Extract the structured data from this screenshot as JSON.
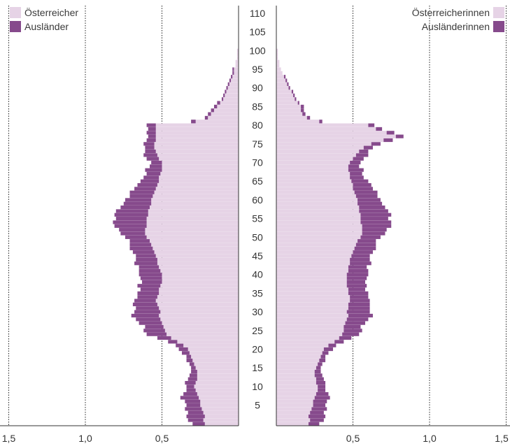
{
  "chart_data": {
    "type": "bar",
    "orientation": "horizontal",
    "subtype": "population-pyramid",
    "stacked": true,
    "colors": {
      "citizen": "#e6d3e6",
      "foreigner": "#864a8c"
    },
    "age_ticks": [
      5,
      10,
      15,
      20,
      25,
      30,
      35,
      40,
      45,
      50,
      55,
      60,
      65,
      70,
      75,
      80,
      85,
      90,
      95,
      100,
      105,
      110
    ],
    "x_ticks_left": [
      "1,5",
      "1,0",
      "0,5"
    ],
    "x_ticks_right": [
      "0,5",
      "1,0",
      "1,5"
    ],
    "x_tick_values": [
      1.5,
      1.0,
      0.5
    ],
    "xlim": [
      0,
      1.5
    ],
    "ylim": [
      0,
      112
    ],
    "legend": {
      "left": [
        {
          "label": "Österreicher",
          "key": "citizen"
        },
        {
          "label": "Ausländer",
          "key": "foreigner"
        }
      ],
      "right": [
        {
          "label": "Österreicherinnen",
          "key": "citizen"
        },
        {
          "label": "Ausländerinnen",
          "key": "foreigner"
        }
      ]
    },
    "ages": [
      0,
      1,
      2,
      3,
      4,
      5,
      6,
      7,
      8,
      9,
      10,
      11,
      12,
      13,
      14,
      15,
      16,
      17,
      18,
      19,
      20,
      21,
      22,
      23,
      24,
      25,
      26,
      27,
      28,
      29,
      30,
      31,
      32,
      33,
      34,
      35,
      36,
      37,
      38,
      39,
      40,
      41,
      42,
      43,
      44,
      45,
      46,
      47,
      48,
      49,
      50,
      51,
      52,
      53,
      54,
      55,
      56,
      57,
      58,
      59,
      60,
      61,
      62,
      63,
      64,
      65,
      66,
      67,
      68,
      69,
      70,
      71,
      72,
      73,
      74,
      75,
      76,
      77,
      78,
      79,
      80,
      81,
      82,
      83,
      84,
      85,
      86,
      87,
      88,
      89,
      90,
      91,
      92,
      93,
      94,
      95,
      96,
      97,
      98,
      99,
      100
    ],
    "series": [
      {
        "name": "Österreicher",
        "sex": "male",
        "group": "citizen",
        "values": [
          0.22,
          0.23,
          0.22,
          0.23,
          0.24,
          0.25,
          0.25,
          0.26,
          0.27,
          0.28,
          0.29,
          0.28,
          0.27,
          0.27,
          0.27,
          0.28,
          0.29,
          0.3,
          0.31,
          0.32,
          0.33,
          0.36,
          0.4,
          0.44,
          0.47,
          0.48,
          0.49,
          0.5,
          0.51,
          0.52,
          0.51,
          0.52,
          0.53,
          0.54,
          0.53,
          0.52,
          0.52,
          0.51,
          0.5,
          0.5,
          0.5,
          0.51,
          0.52,
          0.53,
          0.53,
          0.54,
          0.55,
          0.56,
          0.57,
          0.58,
          0.6,
          0.61,
          0.61,
          0.6,
          0.6,
          0.6,
          0.59,
          0.59,
          0.58,
          0.57,
          0.57,
          0.56,
          0.55,
          0.54,
          0.53,
          0.52,
          0.52,
          0.51,
          0.5,
          0.5,
          0.5,
          0.52,
          0.53,
          0.54,
          0.55,
          0.55,
          0.54,
          0.54,
          0.54,
          0.54,
          0.54,
          0.28,
          0.2,
          0.18,
          0.16,
          0.14,
          0.12,
          0.1,
          0.09,
          0.08,
          0.07,
          0.06,
          0.05,
          0.04,
          0.03,
          0.03,
          0.02,
          0.02,
          0.01,
          0.01,
          0.01
        ]
      },
      {
        "name": "Ausländer",
        "sex": "male",
        "group": "foreigner",
        "values": [
          0.08,
          0.1,
          0.12,
          0.1,
          0.11,
          0.09,
          0.1,
          0.12,
          0.09,
          0.06,
          0.05,
          0.07,
          0.06,
          0.05,
          0.04,
          0.03,
          0.03,
          0.04,
          0.03,
          0.05,
          0.06,
          0.05,
          0.06,
          0.09,
          0.13,
          0.14,
          0.12,
          0.15,
          0.16,
          0.18,
          0.17,
          0.15,
          0.16,
          0.14,
          0.13,
          0.14,
          0.12,
          0.15,
          0.13,
          0.14,
          0.15,
          0.14,
          0.13,
          0.15,
          0.14,
          0.13,
          0.14,
          0.15,
          0.14,
          0.13,
          0.14,
          0.16,
          0.17,
          0.21,
          0.22,
          0.2,
          0.22,
          0.21,
          0.19,
          0.18,
          0.17,
          0.15,
          0.16,
          0.14,
          0.13,
          0.12,
          0.1,
          0.09,
          0.11,
          0.08,
          0.07,
          0.08,
          0.09,
          0.07,
          0.06,
          0.07,
          0.06,
          0.05,
          0.06,
          0.05,
          0.06,
          0.03,
          0.02,
          0.02,
          0.02,
          0.02,
          0.02,
          0.01,
          0.01,
          0.01,
          0.01,
          0.01,
          0.01,
          0.01,
          0.01,
          0.01,
          0.0,
          0.0,
          0.0,
          0.0,
          0.0
        ]
      },
      {
        "name": "Österreicherinnen",
        "sex": "female",
        "group": "citizen",
        "values": [
          0.21,
          0.22,
          0.21,
          0.22,
          0.23,
          0.24,
          0.24,
          0.25,
          0.26,
          0.27,
          0.27,
          0.26,
          0.26,
          0.25,
          0.25,
          0.26,
          0.27,
          0.28,
          0.29,
          0.3,
          0.31,
          0.34,
          0.38,
          0.41,
          0.43,
          0.44,
          0.44,
          0.45,
          0.46,
          0.47,
          0.46,
          0.47,
          0.47,
          0.48,
          0.48,
          0.47,
          0.47,
          0.46,
          0.46,
          0.46,
          0.46,
          0.47,
          0.47,
          0.48,
          0.48,
          0.49,
          0.5,
          0.51,
          0.52,
          0.53,
          0.55,
          0.56,
          0.56,
          0.56,
          0.55,
          0.55,
          0.55,
          0.54,
          0.54,
          0.53,
          0.53,
          0.52,
          0.51,
          0.5,
          0.5,
          0.49,
          0.48,
          0.48,
          0.47,
          0.47,
          0.48,
          0.5,
          0.52,
          0.54,
          0.57,
          0.62,
          0.7,
          0.78,
          0.72,
          0.65,
          0.6,
          0.28,
          0.2,
          0.17,
          0.16,
          0.16,
          0.14,
          0.12,
          0.11,
          0.1,
          0.08,
          0.07,
          0.06,
          0.05,
          0.04,
          0.03,
          0.02,
          0.02,
          0.01,
          0.01,
          0.01
        ]
      },
      {
        "name": "Ausländerinnen",
        "sex": "female",
        "group": "foreigner",
        "values": [
          0.07,
          0.09,
          0.11,
          0.09,
          0.1,
          0.08,
          0.09,
          0.1,
          0.08,
          0.05,
          0.05,
          0.06,
          0.05,
          0.05,
          0.04,
          0.03,
          0.03,
          0.04,
          0.03,
          0.04,
          0.06,
          0.05,
          0.06,
          0.08,
          0.11,
          0.12,
          0.11,
          0.13,
          0.14,
          0.16,
          0.15,
          0.14,
          0.14,
          0.13,
          0.12,
          0.13,
          0.11,
          0.13,
          0.12,
          0.13,
          0.14,
          0.13,
          0.12,
          0.14,
          0.13,
          0.12,
          0.13,
          0.14,
          0.13,
          0.12,
          0.13,
          0.15,
          0.16,
          0.19,
          0.2,
          0.18,
          0.2,
          0.19,
          0.17,
          0.16,
          0.15,
          0.14,
          0.15,
          0.13,
          0.12,
          0.11,
          0.09,
          0.08,
          0.1,
          0.07,
          0.07,
          0.07,
          0.08,
          0.06,
          0.06,
          0.06,
          0.06,
          0.05,
          0.05,
          0.04,
          0.04,
          0.02,
          0.02,
          0.02,
          0.02,
          0.02,
          0.01,
          0.01,
          0.01,
          0.01,
          0.01,
          0.01,
          0.01,
          0.01,
          0.0,
          0.0,
          0.0,
          0.0,
          0.0,
          0.0,
          0.0
        ]
      }
    ]
  }
}
